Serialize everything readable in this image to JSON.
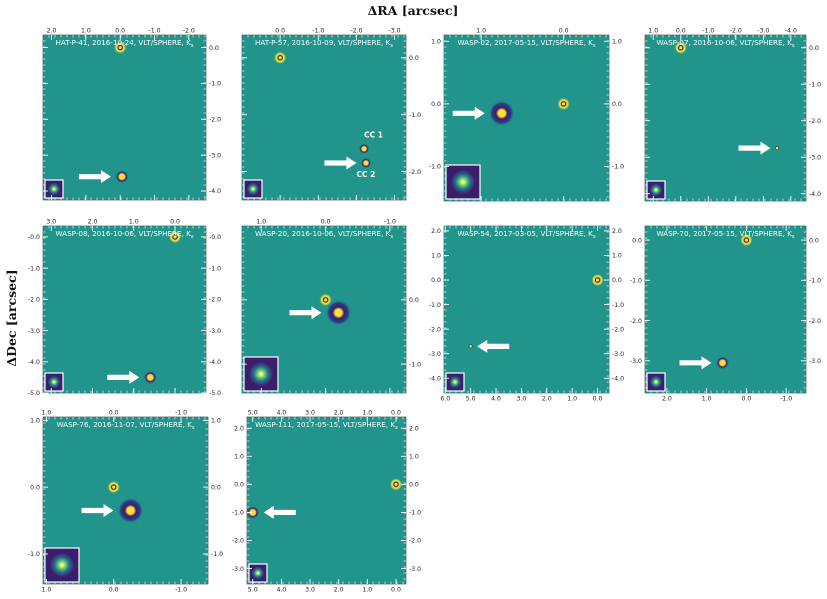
{
  "figure": {
    "xlabel": "ΔRA [arcsec]",
    "ylabel": "ΔDec [arcsec]"
  },
  "colors": {
    "background": "#21948c",
    "companion_halo": "#3a1a6e",
    "core": "#ffe03a",
    "ring": "#b8dc3a",
    "arrow": "#ffffff",
    "inset_bg": "#3b1d6b"
  },
  "panels": [
    {
      "title": "HAT-P-41, 2016-10-24, VLT/SPHERE, K",
      "subscript": "s",
      "xticks": [
        {
          "v": 2.0,
          "t": "2.0"
        },
        {
          "v": 1.0,
          "t": "1.0"
        },
        {
          "v": 0.0,
          "t": "0.0"
        },
        {
          "v": -1.0,
          "t": "-1.0"
        },
        {
          "v": -2.0,
          "t": "-2.0"
        }
      ],
      "yticks": [
        {
          "v": 0.0,
          "t": "0.0"
        },
        {
          "v": -1.0,
          "t": "-1.0"
        },
        {
          "v": -2.0,
          "t": "-2.0"
        },
        {
          "v": -3.0,
          "t": "-3.0"
        },
        {
          "v": -4.0,
          "t": "-4.0"
        }
      ],
      "xaxis_side": "top",
      "yaxis_side": "right",
      "companions": [
        {
          "ra": -0.05,
          "dec": -3.6,
          "size": "small",
          "arrow": "left"
        }
      ],
      "labels": []
    },
    {
      "title": "HAT-P-57, 2016-10-09, VLT/SPHERE, K",
      "subscript": "s",
      "xticks": [
        {
          "v": 0.0,
          "t": "0.0"
        },
        {
          "v": -1.0,
          "t": "-1.0"
        },
        {
          "v": -2.0,
          "t": "-2.0"
        },
        {
          "v": -3.0,
          "t": "-3.0"
        }
      ],
      "yticks": [
        {
          "v": 0.0,
          "t": "0.0"
        },
        {
          "v": -1.0,
          "t": "-1.0"
        },
        {
          "v": -2.0,
          "t": "-2.0"
        },
        {
          "v": -3.0,
          "t": "-3.0"
        }
      ],
      "xaxis_side": "top",
      "yaxis_side": "right",
      "companions": [
        {
          "ra": -2.2,
          "dec": -1.6,
          "size": "tiny",
          "arrow": "none"
        },
        {
          "ra": -2.25,
          "dec": -1.85,
          "size": "tiny",
          "arrow": "left-mid"
        }
      ],
      "labels": [
        {
          "text": "CC 1",
          "ra": -2.45,
          "dec": -1.4
        },
        {
          "text": "CC 2",
          "ra": -2.25,
          "dec": -2.1
        }
      ]
    },
    {
      "title": "WASP-02, 2017-05-15, VLT/SPHERE, K",
      "subscript": "s",
      "xticks": [
        {
          "v": 1.0,
          "t": "1.0"
        },
        {
          "v": 0.0,
          "t": "0.0"
        }
      ],
      "yticks": [
        {
          "v": 1.0,
          "t": "1.0"
        },
        {
          "v": 0.0,
          "t": "0.0"
        },
        {
          "v": -1.0,
          "t": "-1.0"
        }
      ],
      "xaxis_side": "top",
      "yaxis_side": "both",
      "companions": [
        {
          "ra": 0.75,
          "dec": -0.15,
          "size": "large",
          "arrow": "left"
        }
      ],
      "labels": []
    },
    {
      "title": "WASP-07, 2016-10-06, VLT/SPHERE, K",
      "subscript": "s",
      "xticks": [
        {
          "v": 1.0,
          "t": "1.0"
        },
        {
          "v": 0.0,
          "t": "0.0"
        },
        {
          "v": -1.0,
          "t": "-1.0"
        },
        {
          "v": -2.0,
          "t": "-2.0"
        },
        {
          "v": -3.0,
          "t": "-3.0"
        },
        {
          "v": -4.0,
          "t": "-4.0"
        }
      ],
      "yticks": [
        {
          "v": 0.0,
          "t": "0.0"
        },
        {
          "v": -1.0,
          "t": "-1.0"
        },
        {
          "v": -2.0,
          "t": "-2.0"
        },
        {
          "v": -3.0,
          "t": "-3.0"
        },
        {
          "v": -4.0,
          "t": "-4.0"
        }
      ],
      "xaxis_side": "top",
      "yaxis_side": "right",
      "companions": [
        {
          "ra": -3.5,
          "dec": -2.75,
          "size": "dot",
          "arrow": "left"
        }
      ],
      "labels": []
    },
    {
      "title": "WASP-08, 2016-10-06, VLT/SPHERE, K",
      "subscript": "s",
      "xticks": [
        {
          "v": 3.0,
          "t": "3.0"
        },
        {
          "v": 2.0,
          "t": "2.0"
        },
        {
          "v": 1.0,
          "t": "1.0"
        },
        {
          "v": 0.0,
          "t": "0.0"
        }
      ],
      "yticks": [
        {
          "v": -0.0,
          "t": "-0.0"
        },
        {
          "v": -1.0,
          "t": "-1.0"
        },
        {
          "v": -2.0,
          "t": "-2.0"
        },
        {
          "v": -3.0,
          "t": "-3.0"
        },
        {
          "v": -4.0,
          "t": "-4.0"
        },
        {
          "v": -5.0,
          "t": "-5.0"
        }
      ],
      "xaxis_side": "top",
      "yaxis_side": "both",
      "companions": [
        {
          "ra": 0.6,
          "dec": -4.5,
          "size": "small",
          "arrow": "left"
        }
      ],
      "labels": []
    },
    {
      "title": "WASP-20, 2016-10-06, VLT/SPHERE, K",
      "subscript": "s",
      "xticks": [
        {
          "v": 1.0,
          "t": "1.0"
        },
        {
          "v": 0.0,
          "t": "0.0"
        },
        {
          "v": -1.0,
          "t": "-1.0"
        }
      ],
      "yticks": [
        {
          "v": 0.0,
          "t": "0.0"
        },
        {
          "v": -1.0,
          "t": "-1.0"
        }
      ],
      "xaxis_side": "top",
      "yaxis_side": "right",
      "companions": [
        {
          "ra": -0.2,
          "dec": -0.2,
          "size": "large",
          "arrow": "left"
        }
      ],
      "labels": []
    },
    {
      "title": "WASP-54, 2017-03-05, VLT/SPHERE, K",
      "subscript": "s",
      "xticks": [
        {
          "v": 6.0,
          "t": "6.0"
        },
        {
          "v": 5.0,
          "t": "5.0"
        },
        {
          "v": 4.0,
          "t": "4.0"
        },
        {
          "v": 3.0,
          "t": "3.0"
        },
        {
          "v": 2.0,
          "t": "2.0"
        },
        {
          "v": 1.0,
          "t": "1.0"
        },
        {
          "v": 0.0,
          "t": "0.0"
        }
      ],
      "yticks": [
        {
          "v": 2.0,
          "t": "2.0"
        },
        {
          "v": 1.0,
          "t": "1.0"
        },
        {
          "v": 0.0,
          "t": "0.0"
        },
        {
          "v": -1.0,
          "t": "-1.0"
        },
        {
          "v": -2.0,
          "t": "-2.0"
        },
        {
          "v": -3.0,
          "t": "-3.0"
        },
        {
          "v": -4.0,
          "t": "-4.0"
        }
      ],
      "xaxis_side": "bottom",
      "yaxis_side": "both",
      "companions": [
        {
          "ra": 5.0,
          "dec": -2.7,
          "size": "dot",
          "arrow": "right"
        }
      ],
      "labels": []
    },
    {
      "title": "WASP-70, 2017-05-15, VLT/SPHERE, K",
      "subscript": "s",
      "xticks": [
        {
          "v": 2.0,
          "t": "2.0"
        },
        {
          "v": 1.0,
          "t": "1.0"
        },
        {
          "v": 0.0,
          "t": "0.0"
        },
        {
          "v": -1.0,
          "t": "-1.0"
        }
      ],
      "yticks": [
        {
          "v": 0.0,
          "t": "0.0"
        },
        {
          "v": -1.0,
          "t": "-1.0"
        },
        {
          "v": -2.0,
          "t": "-2.0"
        },
        {
          "v": -3.0,
          "t": "-3.0"
        }
      ],
      "xaxis_side": "bottom",
      "yaxis_side": "both",
      "companions": [
        {
          "ra": 0.6,
          "dec": -3.05,
          "size": "small",
          "arrow": "left"
        }
      ],
      "labels": []
    },
    {
      "title": "WASP-76, 2016-11-07, VLT/SPHERE, K",
      "subscript": "s",
      "xticks": [
        {
          "v": 1.0,
          "t": "1.0"
        },
        {
          "v": 0.0,
          "t": "0.0"
        },
        {
          "v": -1.0,
          "t": "-1.0"
        }
      ],
      "yticks": [
        {
          "v": 1.0,
          "t": "1.0"
        },
        {
          "v": 0.0,
          "t": "0.0"
        },
        {
          "v": -1.0,
          "t": "-1.0"
        }
      ],
      "xaxis_side": "both",
      "yaxis_side": "both",
      "companions": [
        {
          "ra": -0.25,
          "dec": -0.35,
          "size": "large",
          "arrow": "left"
        }
      ],
      "labels": []
    },
    {
      "title": "WASP-111, 2017-05-15, VLT/SPHERE, K",
      "subscript": "s",
      "xticks": [
        {
          "v": 5.0,
          "t": "5.0"
        },
        {
          "v": 4.0,
          "t": "4.0"
        },
        {
          "v": 3.0,
          "t": "3.0"
        },
        {
          "v": 2.0,
          "t": "2.0"
        },
        {
          "v": 1.0,
          "t": "1.0"
        },
        {
          "v": 0.0,
          "t": "0.0"
        }
      ],
      "yticks": [
        {
          "v": 2.0,
          "t": "2.0"
        },
        {
          "v": 1.0,
          "t": "1.0"
        },
        {
          "v": 0.0,
          "t": "0.0"
        },
        {
          "v": -1.0,
          "t": "-1.0"
        },
        {
          "v": -2.0,
          "t": "-2.0"
        },
        {
          "v": -3.0,
          "t": "-3.0"
        }
      ],
      "xaxis_side": "both",
      "yaxis_side": "both",
      "companions": [
        {
          "ra": 5.0,
          "dec": -1.0,
          "size": "small",
          "arrow": "right"
        }
      ],
      "labels": []
    }
  ]
}
